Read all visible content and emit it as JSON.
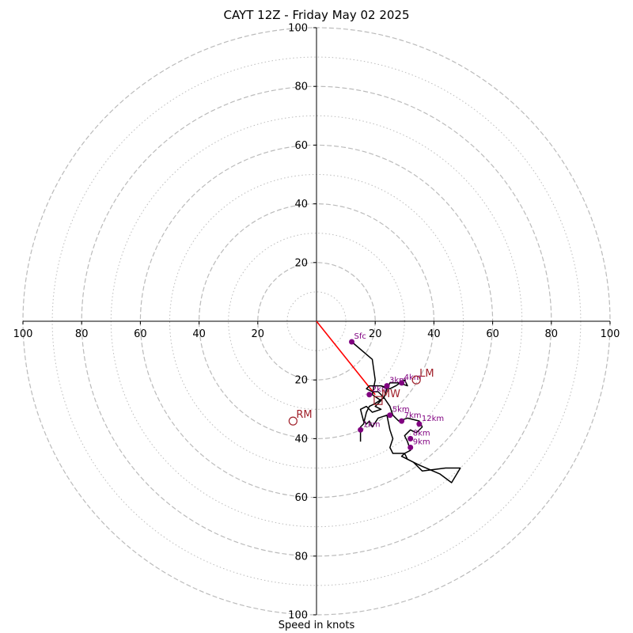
{
  "title": "CAYT 12Z - Friday May 02 2025",
  "xlabel": "Speed in knots",
  "chart_data": {
    "type": "hodograph",
    "title": "CAYT 12Z - Friday May 02 2025",
    "xlabel": "Speed in knots",
    "ylabel": "",
    "xlim": [
      -100,
      100
    ],
    "ylim": [
      -100,
      100
    ],
    "grid": true,
    "ring_major": [
      20,
      40,
      60,
      80,
      100
    ],
    "ring_minor": [
      10,
      30,
      50,
      70,
      90
    ],
    "x_ticks": [
      {
        "v": -100,
        "label": "100"
      },
      {
        "v": -80,
        "label": "80"
      },
      {
        "v": -60,
        "label": "60"
      },
      {
        "v": -40,
        "label": "40"
      },
      {
        "v": -20,
        "label": "20"
      },
      {
        "v": 20,
        "label": "20"
      },
      {
        "v": 40,
        "label": "40"
      },
      {
        "v": 60,
        "label": "60"
      },
      {
        "v": 80,
        "label": "80"
      },
      {
        "v": 100,
        "label": "100"
      }
    ],
    "y_ticks": [
      {
        "v": 100,
        "label": "100"
      },
      {
        "v": 80,
        "label": "80"
      },
      {
        "v": 60,
        "label": "60"
      },
      {
        "v": 40,
        "label": "40"
      },
      {
        "v": 20,
        "label": "20"
      },
      {
        "v": -20,
        "label": "20"
      },
      {
        "v": -40,
        "label": "40"
      },
      {
        "v": -60,
        "label": "60"
      },
      {
        "v": -80,
        "label": "80"
      },
      {
        "v": -100,
        "label": "100"
      }
    ],
    "hodograph_line": [
      [
        12,
        -7
      ],
      [
        19,
        -13
      ],
      [
        20,
        -20
      ],
      [
        19,
        -25
      ],
      [
        22,
        -27
      ],
      [
        20,
        -29
      ],
      [
        22,
        -30
      ],
      [
        19,
        -31
      ],
      [
        17,
        -29
      ],
      [
        15,
        -30
      ],
      [
        16,
        -34
      ],
      [
        17,
        -35
      ],
      [
        18,
        -34
      ],
      [
        19,
        -36
      ],
      [
        21,
        -33
      ],
      [
        24,
        -32
      ],
      [
        25,
        -37
      ],
      [
        26,
        -40
      ],
      [
        25,
        -43
      ],
      [
        26,
        -45
      ],
      [
        30,
        -45
      ],
      [
        29,
        -46
      ],
      [
        33,
        -48
      ],
      [
        36,
        -51
      ],
      [
        44,
        -50
      ],
      [
        49,
        -50
      ],
      [
        46,
        -55
      ],
      [
        42,
        -52
      ],
      [
        35,
        -49
      ],
      [
        31,
        -47
      ],
      [
        30,
        -45
      ],
      [
        32,
        -44
      ],
      [
        31,
        -41
      ],
      [
        30,
        -39
      ],
      [
        32,
        -37
      ],
      [
        34,
        -38
      ],
      [
        36,
        -36
      ],
      [
        35,
        -34
      ],
      [
        31,
        -33
      ],
      [
        28,
        -34
      ],
      [
        26,
        -32
      ],
      [
        25,
        -29
      ],
      [
        23,
        -26
      ],
      [
        24,
        -23
      ],
      [
        22,
        -22
      ],
      [
        24,
        -23
      ],
      [
        25,
        -21
      ],
      [
        28,
        -21
      ],
      [
        31,
        -22
      ],
      [
        30,
        -20
      ],
      [
        27,
        -22
      ],
      [
        25,
        -23
      ],
      [
        22,
        -22
      ],
      [
        18,
        -22
      ],
      [
        17,
        -23
      ],
      [
        19,
        -24
      ],
      [
        21,
        -24
      ],
      [
        23,
        -26
      ],
      [
        20,
        -28
      ],
      [
        18,
        -29
      ],
      [
        17,
        -31
      ],
      [
        16,
        -35
      ],
      [
        15,
        -36
      ],
      [
        15,
        -41
      ]
    ],
    "height_points": [
      {
        "label": "Sfc",
        "u": 12,
        "v": -7
      },
      {
        "label": "1km",
        "u": 15,
        "v": -37
      },
      {
        "label": "2km",
        "u": 18,
        "v": -25
      },
      {
        "label": "3km",
        "u": 24,
        "v": -22
      },
      {
        "label": "4km",
        "u": 29,
        "v": -21
      },
      {
        "label": "5km",
        "u": 25,
        "v": -32
      },
      {
        "label": "7km",
        "u": 29,
        "v": -34
      },
      {
        "label": "8km",
        "u": 32,
        "v": -40
      },
      {
        "label": "9km",
        "u": 32,
        "v": -43
      },
      {
        "label": "12km",
        "u": 35,
        "v": -35
      }
    ],
    "storm_motion": [
      {
        "label": "RM",
        "u": -8,
        "v": -34,
        "marker": "circle"
      },
      {
        "label": "LM",
        "u": 34,
        "v": -20,
        "marker": "circle"
      },
      {
        "label": "MW",
        "u": 21,
        "v": -27,
        "marker": "square"
      }
    ],
    "shear_vector": {
      "from": [
        0,
        0
      ],
      "to": [
        20,
        -25
      ]
    },
    "colors": {
      "hodograph": "#000000",
      "points": "#800080",
      "shear": "#ff0000",
      "storm_motion": "#a0202a",
      "ring_grid": "#bbbbbb"
    }
  }
}
